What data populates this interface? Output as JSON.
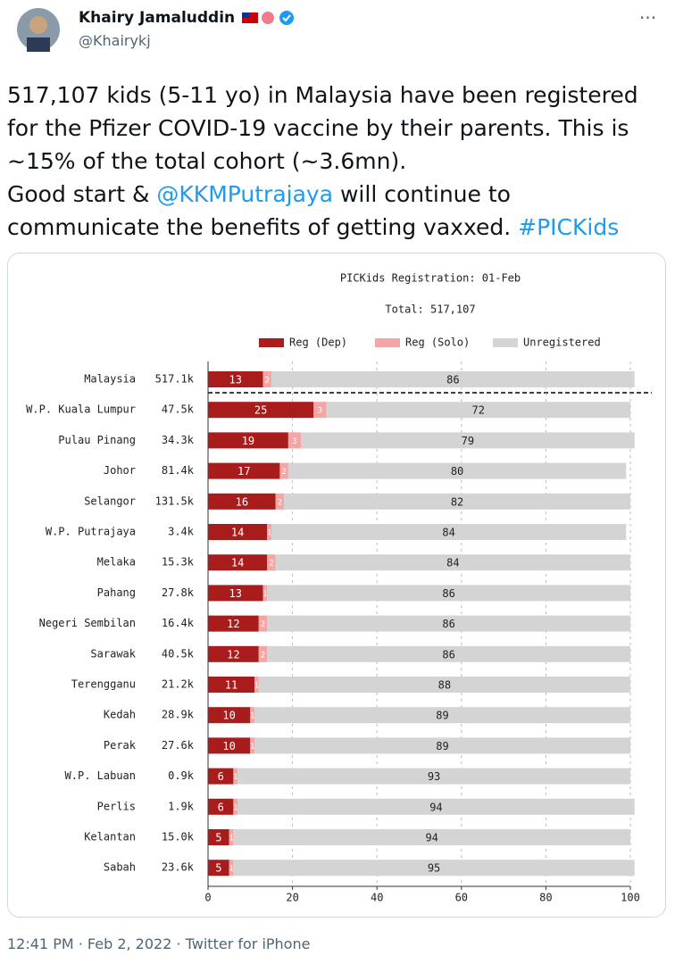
{
  "tweet": {
    "name": "Khairy Jamaluddin",
    "handle": "@Khairykj",
    "text_parts": [
      "517,107 kids (5-11 yo) in Malaysia have been registered for the Pfizer COVID-19 vaccine by their parents. This is ~15% of the total cohort (~3.6mn).",
      "Good start & ",
      "@KKMPutrajaya",
      " will continue to communicate the benefits of getting vaxxed. ",
      "#PICKids"
    ],
    "footer": "12:41 PM · Feb 2, 2022 · Twitter for iPhone"
  },
  "chart_data": {
    "type": "stacked-barh",
    "title": "PICKids Registration: 01-Feb",
    "subtitle": "Total: 517,107",
    "categories": [
      "Malaysia",
      "W.P. Kuala Lumpur",
      "Pulau Pinang",
      "Johor",
      "Selangor",
      "W.P. Putrajaya",
      "Melaka",
      "Pahang",
      "Negeri Sembilan",
      "Sarawak",
      "Terengganu",
      "Kedah",
      "Perak",
      "W.P. Labuan",
      "Perlis",
      "Kelantan",
      "Sabah"
    ],
    "counts": [
      "517.1k",
      "47.5k",
      "34.3k",
      "81.4k",
      "131.5k",
      "3.4k",
      "15.3k",
      "27.8k",
      "16.4k",
      "40.5k",
      "21.2k",
      "28.9k",
      "27.6k",
      "0.9k",
      "1.9k",
      "15.0k",
      "23.6k"
    ],
    "series": [
      {
        "name": "Reg (Dep)",
        "color": "#a81c1c",
        "values": [
          13,
          25,
          19,
          17,
          16,
          14,
          14,
          13,
          12,
          12,
          11,
          10,
          10,
          6,
          6,
          5,
          5
        ]
      },
      {
        "name": "Reg (Solo)",
        "color": "#f3a6a6",
        "values": [
          2,
          3,
          3,
          2,
          2,
          1,
          2,
          1,
          2,
          2,
          1,
          1,
          1,
          1,
          1,
          1,
          1
        ]
      },
      {
        "name": "Unregistered",
        "color": "#d4d4d4",
        "values": [
          86,
          72,
          79,
          80,
          82,
          84,
          84,
          86,
          86,
          86,
          88,
          89,
          89,
          93,
          94,
          94,
          95
        ]
      }
    ],
    "xlim": [
      0,
      100
    ],
    "xticks": [
      0,
      20,
      40,
      60,
      80,
      100
    ],
    "grid": true
  }
}
